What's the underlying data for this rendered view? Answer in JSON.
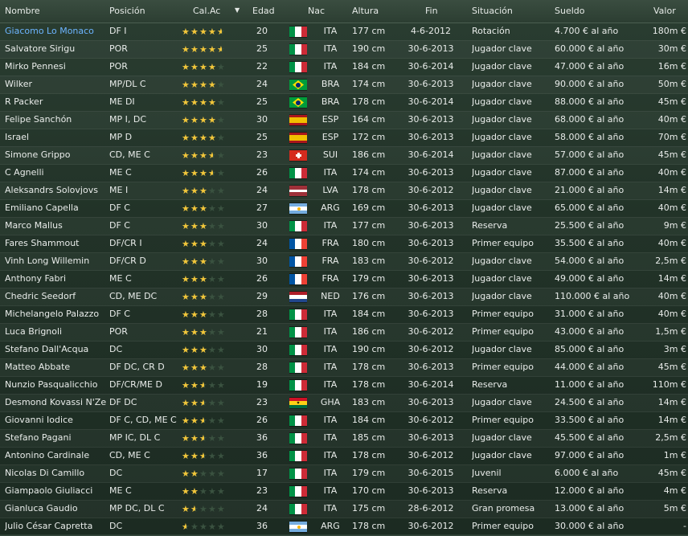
{
  "header": {
    "name": "Nombre",
    "position": "Posición",
    "rating": "Cal.Ac",
    "age": "Edad",
    "nat": "Nac",
    "height": "Altura",
    "end": "Fin",
    "situation": "Situación",
    "wage": "Sueldo",
    "value": "Valor",
    "sort_arrow": "▼"
  },
  "players": [
    {
      "name": "Giacomo Lo Monaco",
      "pos": "DF I",
      "stars": 4.5,
      "age": "20",
      "nat": "ITA",
      "height": "177 cm",
      "end": "4-6-2012",
      "situation": "Rotación",
      "wage": "4.700 € al año",
      "value": "180m €"
    },
    {
      "name": "Salvatore Sirigu",
      "pos": "POR",
      "stars": 4.5,
      "age": "25",
      "nat": "ITA",
      "height": "190 cm",
      "end": "30-6-2013",
      "situation": "Jugador clave",
      "wage": "60.000 € al año",
      "value": "30m €"
    },
    {
      "name": "Mirko Pennesi",
      "pos": "POR",
      "stars": 4,
      "age": "22",
      "nat": "ITA",
      "height": "184 cm",
      "end": "30-6-2014",
      "situation": "Jugador clave",
      "wage": "47.000 € al año",
      "value": "16m €"
    },
    {
      "name": "Wilker",
      "pos": "MP/DL C",
      "stars": 4,
      "age": "24",
      "nat": "BRA",
      "height": "174 cm",
      "end": "30-6-2013",
      "situation": "Jugador clave",
      "wage": "90.000 € al año",
      "value": "50m €"
    },
    {
      "name": "R Packer",
      "pos": "ME DI",
      "stars": 4,
      "age": "25",
      "nat": "BRA",
      "height": "178 cm",
      "end": "30-6-2014",
      "situation": "Jugador clave",
      "wage": "88.000 € al año",
      "value": "45m €"
    },
    {
      "name": "Felipe Sanchón",
      "pos": "MP I, DC",
      "stars": 4,
      "age": "30",
      "nat": "ESP",
      "height": "164 cm",
      "end": "30-6-2013",
      "situation": "Jugador clave",
      "wage": "68.000 € al año",
      "value": "40m €"
    },
    {
      "name": "Israel",
      "pos": "MP D",
      "stars": 4,
      "age": "25",
      "nat": "ESP",
      "height": "172 cm",
      "end": "30-6-2013",
      "situation": "Jugador clave",
      "wage": "58.000 € al año",
      "value": "70m €"
    },
    {
      "name": "Simone Grippo",
      "pos": "CD, ME C",
      "stars": 3.5,
      "age": "23",
      "nat": "SUI",
      "height": "186 cm",
      "end": "30-6-2014",
      "situation": "Jugador clave",
      "wage": "57.000 € al año",
      "value": "45m €"
    },
    {
      "name": "C Agnelli",
      "pos": "ME C",
      "stars": 3.5,
      "age": "26",
      "nat": "ITA",
      "height": "174 cm",
      "end": "30-6-2013",
      "situation": "Jugador clave",
      "wage": "87.000 € al año",
      "value": "40m €"
    },
    {
      "name": "Aleksandrs Solovjovs",
      "pos": "ME I",
      "stars": 3,
      "age": "24",
      "nat": "LVA",
      "height": "178 cm",
      "end": "30-6-2012",
      "situation": "Jugador clave",
      "wage": "21.000 € al año",
      "value": "14m €"
    },
    {
      "name": "Emiliano Capella",
      "pos": "DF C",
      "stars": 3,
      "age": "27",
      "nat": "ARG",
      "height": "169 cm",
      "end": "30-6-2013",
      "situation": "Jugador clave",
      "wage": "65.000 € al año",
      "value": "40m €"
    },
    {
      "name": "Marco Mallus",
      "pos": "DF C",
      "stars": 3,
      "age": "30",
      "nat": "ITA",
      "height": "177 cm",
      "end": "30-6-2013",
      "situation": "Reserva",
      "wage": "25.500 € al año",
      "value": "9m €"
    },
    {
      "name": "Fares Shammout",
      "pos": "DF/CR I",
      "stars": 3,
      "age": "24",
      "nat": "FRA",
      "height": "180 cm",
      "end": "30-6-2013",
      "situation": "Primer equipo",
      "wage": "35.500 € al año",
      "value": "40m €"
    },
    {
      "name": "Vinh Long Willemin",
      "pos": "DF/CR D",
      "stars": 3,
      "age": "30",
      "nat": "FRA",
      "height": "183 cm",
      "end": "30-6-2012",
      "situation": "Jugador clave",
      "wage": "54.000 € al año",
      "value": "2,5m €"
    },
    {
      "name": "Anthony Fabri",
      "pos": "ME C",
      "stars": 3,
      "age": "26",
      "nat": "FRA",
      "height": "179 cm",
      "end": "30-6-2013",
      "situation": "Jugador clave",
      "wage": "49.000 € al año",
      "value": "14m €"
    },
    {
      "name": "Chedric Seedorf",
      "pos": "CD, ME DC",
      "stars": 3,
      "age": "29",
      "nat": "NED",
      "height": "176 cm",
      "end": "30-6-2013",
      "situation": "Jugador clave",
      "wage": "110.000 € al año",
      "value": "40m €"
    },
    {
      "name": "Michelangelo Palazzo",
      "pos": "DF C",
      "stars": 3,
      "age": "28",
      "nat": "ITA",
      "height": "184 cm",
      "end": "30-6-2013",
      "situation": "Primer equipo",
      "wage": "31.000 € al año",
      "value": "40m €"
    },
    {
      "name": "Luca Brignoli",
      "pos": "POR",
      "stars": 3,
      "age": "21",
      "nat": "ITA",
      "height": "186 cm",
      "end": "30-6-2012",
      "situation": "Primer equipo",
      "wage": "43.000 € al año",
      "value": "1,5m €"
    },
    {
      "name": "Stefano Dall'Acqua",
      "pos": "DC",
      "stars": 3,
      "age": "30",
      "nat": "ITA",
      "height": "190 cm",
      "end": "30-6-2012",
      "situation": "Jugador clave",
      "wage": "85.000 € al año",
      "value": "3m €"
    },
    {
      "name": "Matteo Abbate",
      "pos": "DF DC, CR D",
      "stars": 3,
      "age": "28",
      "nat": "ITA",
      "height": "178 cm",
      "end": "30-6-2013",
      "situation": "Primer equipo",
      "wage": "44.000 € al año",
      "value": "45m €"
    },
    {
      "name": "Nunzio Pasqualicchio",
      "pos": "DF/CR/ME D",
      "stars": 2.5,
      "age": "19",
      "nat": "ITA",
      "height": "178 cm",
      "end": "30-6-2014",
      "situation": "Reserva",
      "wage": "11.000 € al año",
      "value": "110m €"
    },
    {
      "name": "Desmond Kovassi N'Ze",
      "pos": "DF DC",
      "stars": 2.5,
      "age": "23",
      "nat": "GHA",
      "height": "183 cm",
      "end": "30-6-2013",
      "situation": "Jugador clave",
      "wage": "24.500 € al año",
      "value": "14m €"
    },
    {
      "name": "Giovanni Iodice",
      "pos": "DF C, CD, ME C",
      "stars": 2.5,
      "age": "26",
      "nat": "ITA",
      "height": "184 cm",
      "end": "30-6-2012",
      "situation": "Primer equipo",
      "wage": "33.500 € al año",
      "value": "14m €"
    },
    {
      "name": "Stefano Pagani",
      "pos": "MP IC, DL C",
      "stars": 2.5,
      "age": "36",
      "nat": "ITA",
      "height": "185 cm",
      "end": "30-6-2013",
      "situation": "Jugador clave",
      "wage": "45.500 € al año",
      "value": "2,5m €"
    },
    {
      "name": "Antonino Cardinale",
      "pos": "CD, ME C",
      "stars": 2.5,
      "age": "36",
      "nat": "ITA",
      "height": "178 cm",
      "end": "30-6-2012",
      "situation": "Jugador clave",
      "wage": "97.000 € al año",
      "value": "1m €"
    },
    {
      "name": "Nicolas Di Camillo",
      "pos": "DC",
      "stars": 2,
      "age": "17",
      "nat": "ITA",
      "height": "179 cm",
      "end": "30-6-2015",
      "situation": "Juvenil",
      "wage": "6.000 € al año",
      "value": "45m €"
    },
    {
      "name": "Giampaolo Giuliacci",
      "pos": "ME C",
      "stars": 2,
      "age": "23",
      "nat": "ITA",
      "height": "170 cm",
      "end": "30-6-2013",
      "situation": "Reserva",
      "wage": "12.000 € al año",
      "value": "4m €"
    },
    {
      "name": "Gianluca Gaudio",
      "pos": "MP DC, DL C",
      "stars": 1.5,
      "age": "24",
      "nat": "ITA",
      "height": "175 cm",
      "end": "28-6-2012",
      "situation": "Gran promesa",
      "wage": "13.000 € al año",
      "value": "5m €"
    },
    {
      "name": "Julio César Capretta",
      "pos": "DC",
      "stars": 0.5,
      "age": "36",
      "nat": "ARG",
      "height": "178 cm",
      "end": "30-6-2012",
      "situation": "Primer equipo",
      "wage": "30.000 € al año",
      "value": "-"
    }
  ],
  "colors": {
    "background": "#223328",
    "header_bg": "#34473a",
    "text": "#e9ecea",
    "selected_text": "#6cb4ff",
    "star_filled": "#f2c63a",
    "star_empty": "#3a5240"
  }
}
